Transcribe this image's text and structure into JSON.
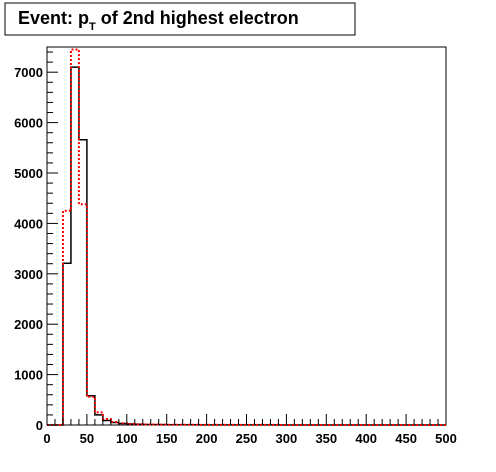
{
  "chart_data": {
    "type": "step-histogram",
    "title": {
      "prefix": "Event: p",
      "subscript": "T",
      "suffix": " of 2nd highest electron"
    },
    "xlim": [
      0,
      500
    ],
    "ylim": [
      0,
      7500
    ],
    "x_ticks": [
      0,
      50,
      100,
      150,
      200,
      250,
      300,
      350,
      400,
      450,
      500
    ],
    "y_ticks": [
      0,
      1000,
      2000,
      3000,
      4000,
      5000,
      6000,
      7000
    ],
    "bin_width": 10,
    "series": [
      {
        "color": "#000000",
        "style": "solid",
        "bin_edges_start": 0,
        "values": [
          0,
          0,
          3210,
          7100,
          5660,
          580,
          200,
          90,
          50,
          30,
          20,
          15,
          10,
          8,
          7,
          6,
          5,
          4,
          4,
          3,
          3,
          3,
          2,
          2,
          2,
          2,
          2,
          2,
          2,
          1,
          1,
          1,
          1,
          1,
          1,
          1,
          1,
          1,
          1,
          1,
          1,
          1,
          1,
          1,
          1,
          1,
          1,
          1,
          1,
          1
        ]
      },
      {
        "color": "#ff0000",
        "style": "dotted",
        "bin_edges_start": 0,
        "values": [
          0,
          0,
          4250,
          7450,
          4380,
          560,
          250,
          120,
          60,
          35,
          22,
          16,
          11,
          9,
          7,
          6,
          5,
          4,
          4,
          3,
          3,
          3,
          2,
          2,
          2,
          2,
          2,
          2,
          2,
          1,
          1,
          1,
          1,
          1,
          1,
          1,
          1,
          1,
          1,
          1,
          1,
          1,
          1,
          1,
          1,
          1,
          1,
          1,
          1,
          1
        ]
      }
    ]
  }
}
